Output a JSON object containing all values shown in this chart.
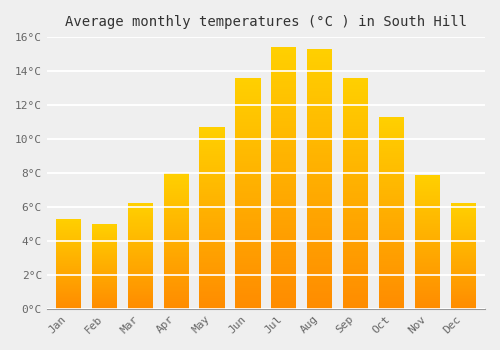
{
  "months": [
    "Jan",
    "Feb",
    "Mar",
    "Apr",
    "May",
    "Jun",
    "Jul",
    "Aug",
    "Sep",
    "Oct",
    "Nov",
    "Dec"
  ],
  "values": [
    5.3,
    5.0,
    6.2,
    8.0,
    10.7,
    13.6,
    15.4,
    15.3,
    13.6,
    11.3,
    7.9,
    6.2
  ],
  "bar_color": "#FFA500",
  "bar_color_top": "#FFD000",
  "bar_color_bottom": "#FF8C00",
  "title": "Average monthly temperatures (°C ) in South Hill",
  "ylim": [
    0,
    16
  ],
  "ytick_step": 2,
  "background_color": "#EFEFEF",
  "grid_color": "#FFFFFF",
  "title_fontsize": 10,
  "tick_fontsize": 8,
  "tick_font": "monospace",
  "tick_color": "#666666",
  "title_color": "#333333",
  "bar_width": 0.7,
  "figsize": [
    5.0,
    3.5
  ],
  "dpi": 100
}
